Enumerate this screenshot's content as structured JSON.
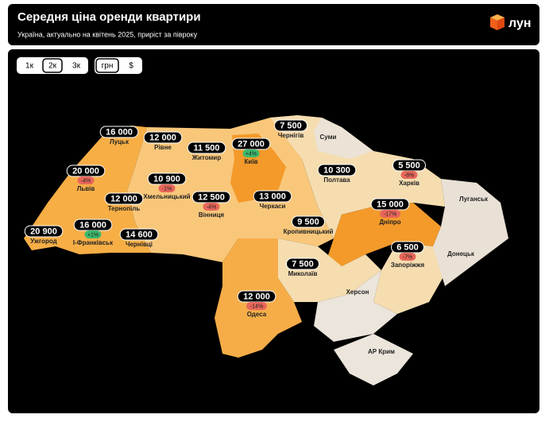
{
  "header": {
    "title": "Середня ціна оренди квартири",
    "subtitle": "Україна, актуально на квітень 2025, приріст за півроку",
    "logo": "лун"
  },
  "controls": {
    "rooms": [
      "1к",
      "2к",
      "3к"
    ],
    "currency": [
      "грн",
      "$"
    ]
  },
  "regions": [
    {
      "name": "Луцьк",
      "price": "16 000"
    },
    {
      "name": "Рівне",
      "price": "12 000"
    },
    {
      "name": "Житомир",
      "price": "11 500"
    },
    {
      "name": "Київ",
      "price": "27 000",
      "change": "+4%"
    },
    {
      "name": "Чернігів",
      "price": "7 500"
    },
    {
      "name": "Суми"
    },
    {
      "name": "Львів",
      "price": "20 000",
      "change": "-4%"
    },
    {
      "name": "Хмельницький",
      "price": "10 900",
      "change": "-1%"
    },
    {
      "name": "Тернопіль",
      "price": "12 000"
    },
    {
      "name": "Вінниця",
      "price": "12 500",
      "change": "-4%"
    },
    {
      "name": "Черкаси",
      "price": "13 000"
    },
    {
      "name": "Полтава",
      "price": "10 300"
    },
    {
      "name": "Харків",
      "price": "5 500",
      "change": "-8%"
    },
    {
      "name": "Луганськ"
    },
    {
      "name": "Ужгород",
      "price": "20 900"
    },
    {
      "name": "І-Франківськ",
      "price": "16 000",
      "change": "+1%"
    },
    {
      "name": "Чернівці",
      "price": "14 600"
    },
    {
      "name": "Кропивницький",
      "price": "9 500"
    },
    {
      "name": "Дніпро",
      "price": "15 000",
      "change": "-17%"
    },
    {
      "name": "Запоріжжя",
      "price": "6 500",
      "change": "-7%"
    },
    {
      "name": "Донецьк"
    },
    {
      "name": "Миколаїв",
      "price": "7 500"
    },
    {
      "name": "Херсон"
    },
    {
      "name": "Одеса",
      "price": "12 000",
      "change": "-14%"
    },
    {
      "name": "АР Крим"
    }
  ]
}
